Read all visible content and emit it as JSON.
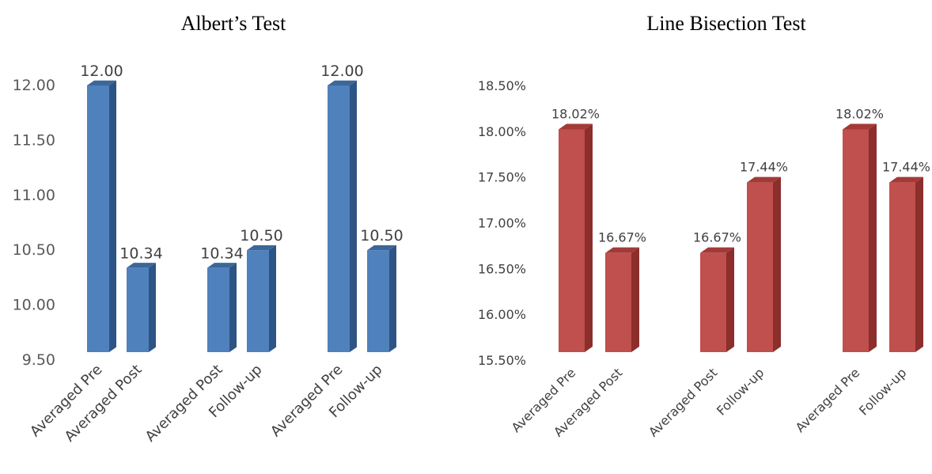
{
  "chart_data": [
    {
      "type": "bar",
      "title": "Albert’s Test",
      "categories": [
        "Averaged Pre",
        "Averaged Post",
        "Averaged Post",
        "Follow-up",
        "Averaged Pre",
        "Follow-up"
      ],
      "groups": [
        [
          0,
          1
        ],
        [
          2,
          3
        ],
        [
          4,
          5
        ]
      ],
      "values": [
        12.0,
        10.34,
        10.34,
        10.5,
        12.0,
        10.5
      ],
      "data_labels": [
        "12.00",
        "10.34",
        "10.34",
        "10.50",
        "12.00",
        "10.50"
      ],
      "y_ticks": [
        "9.50",
        "10.00",
        "10.50",
        "11.00",
        "11.50",
        "12.00"
      ],
      "ylim": [
        9.5,
        12.0
      ],
      "xlabel": "",
      "ylabel": "",
      "grid": false,
      "legend": "none",
      "style": "3d-column",
      "colors": {
        "front": "#4F81BD",
        "side": "#2E5485",
        "top": "#3C6799"
      }
    },
    {
      "type": "bar",
      "title": "Line Bisection Test",
      "categories": [
        "Averaged Pre",
        "Averaged Post",
        "Averaged Post",
        "Follow-up",
        "Averaged Pre",
        "Follow-up"
      ],
      "groups": [
        [
          0,
          1
        ],
        [
          2,
          3
        ],
        [
          4,
          5
        ]
      ],
      "values": [
        18.02,
        16.67,
        16.67,
        17.44,
        18.02,
        17.44
      ],
      "data_labels": [
        "18.02%",
        "16.67%",
        "16.67%",
        "17.44%",
        "18.02%",
        "17.44%"
      ],
      "y_ticks": [
        "15.50%",
        "16.00%",
        "16.50%",
        "17.00%",
        "17.50%",
        "18.00%",
        "18.50%"
      ],
      "ylim": [
        15.5,
        18.5
      ],
      "xlabel": "",
      "ylabel": "",
      "grid": false,
      "legend": "none",
      "style": "3d-column",
      "colors": {
        "front": "#C0504D",
        "side": "#8B2E2C",
        "top": "#A33A37"
      }
    }
  ]
}
